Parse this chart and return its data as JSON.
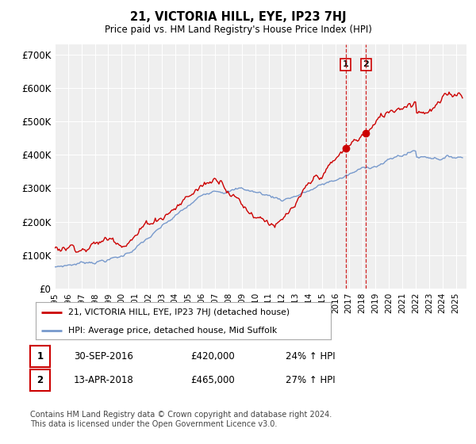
{
  "title": "21, VICTORIA HILL, EYE, IP23 7HJ",
  "subtitle": "Price paid vs. HM Land Registry's House Price Index (HPI)",
  "ylabel_ticks": [
    "£0",
    "£100K",
    "£200K",
    "£300K",
    "£400K",
    "£500K",
    "£600K",
    "£700K"
  ],
  "ytick_values": [
    0,
    100000,
    200000,
    300000,
    400000,
    500000,
    600000,
    700000
  ],
  "ylim": [
    0,
    730000
  ],
  "xlim_start": 1995.0,
  "xlim_end": 2025.8,
  "background_color": "#ffffff",
  "plot_bg_color": "#efefef",
  "grid_color": "#ffffff",
  "red_line_color": "#cc0000",
  "blue_line_color": "#7799cc",
  "sale1_date": 2016.75,
  "sale1_price": 420000,
  "sale2_date": 2018.28,
  "sale2_price": 465000,
  "legend_label1": "21, VICTORIA HILL, EYE, IP23 7HJ (detached house)",
  "legend_label2": "HPI: Average price, detached house, Mid Suffolk",
  "table_row1": [
    "1",
    "30-SEP-2016",
    "£420,000",
    "24% ↑ HPI"
  ],
  "table_row2": [
    "2",
    "13-APR-2018",
    "£465,000",
    "27% ↑ HPI"
  ],
  "footnote": "Contains HM Land Registry data © Crown copyright and database right 2024.\nThis data is licensed under the Open Government Licence v3.0."
}
